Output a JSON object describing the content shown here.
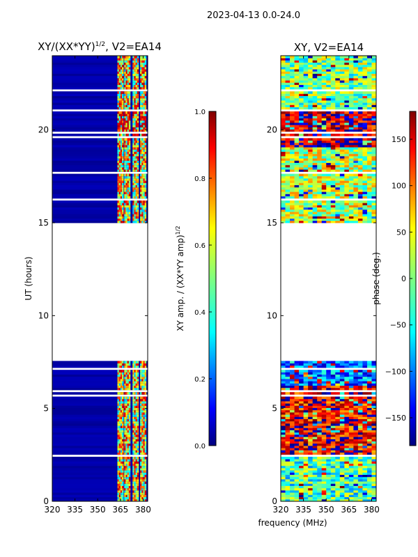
{
  "suptitle": "2023-04-13 0.0-24.0",
  "xlabel_shared": "frequency (MHz)",
  "colors": {
    "jet": [
      "#00007f",
      "#0000ff",
      "#007fff",
      "#00ffff",
      "#7fff7f",
      "#ffff00",
      "#ff7f00",
      "#ff0000",
      "#7f0000"
    ],
    "axis": "#000000",
    "gap": "#ffffff"
  },
  "chart_data": [
    {
      "type": "heatmap",
      "title_main": "XY/(XX*YY)",
      "title_sup": "1/2",
      "title_rest": ", V2=EA14",
      "xlabel": "frequency (MHz)",
      "ylabel": "UT (hours)",
      "xlim": [
        320,
        383
      ],
      "ylim": [
        0,
        24
      ],
      "xticks": [
        320,
        335,
        350,
        365,
        380
      ],
      "yticks": [
        0,
        5,
        10,
        15,
        20
      ],
      "time_coverage_hours": [
        [
          0.0,
          7.6
        ],
        [
          15.0,
          24.0
        ]
      ],
      "no_data_hours": [
        7.6,
        15.0
      ],
      "band_channels_mhz": [
        [
          363,
          367
        ],
        [
          367.5,
          371.5
        ],
        [
          373,
          377
        ],
        [
          378,
          382
        ]
      ],
      "band_value_range": [
        0.3,
        0.95
      ],
      "background_value": 0.02,
      "colorbar": {
        "label": "XY amp. / (XX*YY amp)",
        "label_sup": "1/2",
        "min": 0.0,
        "max": 1.0,
        "ticks": [
          "0.0",
          "0.2",
          "0.4",
          "0.6",
          "0.8",
          "1.0"
        ]
      }
    },
    {
      "type": "heatmap",
      "title": "XY, V2=EA14",
      "xlabel": "frequency (MHz)",
      "ylabel": "",
      "xlim": [
        320,
        383
      ],
      "ylim": [
        0,
        24
      ],
      "xticks": [
        320,
        335,
        350,
        365,
        380
      ],
      "yticks": [
        0,
        5,
        10,
        15,
        20
      ],
      "time_coverage_hours": [
        [
          0.0,
          7.6
        ],
        [
          15.0,
          24.0
        ]
      ],
      "no_data_hours": [
        7.6,
        15.0
      ],
      "dominant_phase_deg": {
        "0-2.5h": -20,
        "2.5-6.2h": 140,
        "6.2-7.6h": -90,
        "15-19h": 20,
        "19-21h": 160,
        "21-24h": 0
      },
      "colorbar": {
        "label": "phase (deg.)",
        "min": -180,
        "max": 180,
        "ticks": [
          "150",
          "100",
          "50",
          "0",
          "−50",
          "−100",
          "−150"
        ],
        "tick_values": [
          150,
          100,
          50,
          0,
          -50,
          -100,
          -150
        ]
      }
    }
  ]
}
